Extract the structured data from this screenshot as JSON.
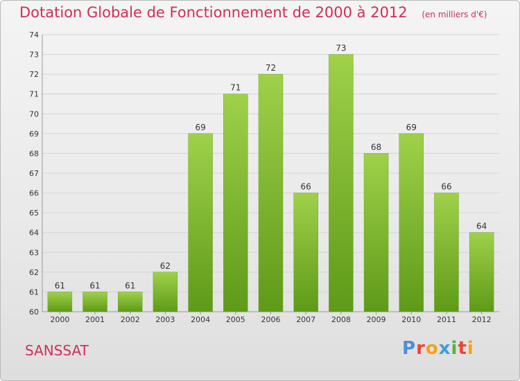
{
  "header": {
    "title": "Dotation Globale de Fonctionnement de 2000 à 2012",
    "subtitle": "(en milliers d'€)"
  },
  "footer": {
    "commune": "SANSSAT",
    "logo": [
      "P",
      "r",
      "o",
      "x",
      "i",
      "t",
      "i"
    ]
  },
  "colors": {
    "title": "#d12d5a",
    "bar_top": "#9fd14a",
    "bar_bottom": "#5e9a18",
    "grid": "#d4d4d4"
  },
  "chart_data": {
    "type": "bar",
    "categories": [
      "2000",
      "2001",
      "2002",
      "2003",
      "2004",
      "2005",
      "2006",
      "2007",
      "2008",
      "2009",
      "2010",
      "2011",
      "2012"
    ],
    "values": [
      61,
      61,
      61,
      62,
      69,
      71,
      72,
      66,
      73,
      68,
      69,
      66,
      64
    ],
    "ylim": [
      60,
      74
    ],
    "yticks": [
      60,
      61,
      62,
      63,
      64,
      65,
      66,
      67,
      68,
      69,
      70,
      71,
      72,
      73,
      74
    ],
    "grid": true,
    "data_labels": true
  }
}
